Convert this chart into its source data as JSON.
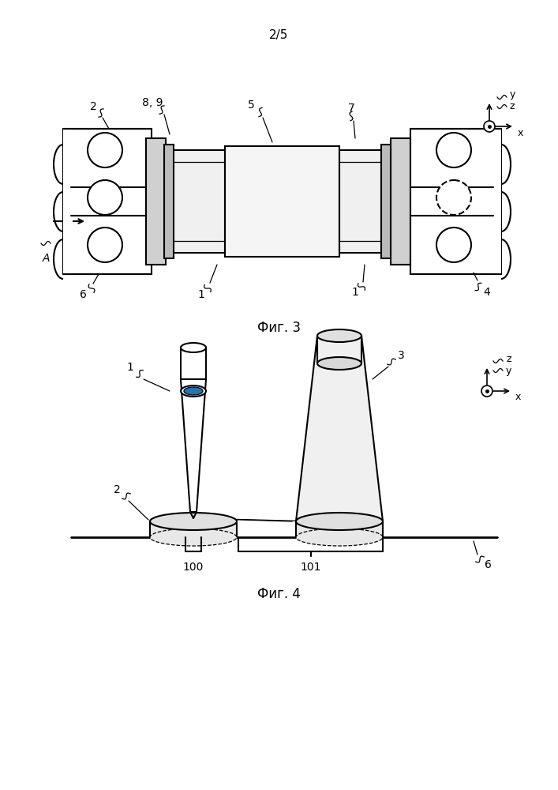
{
  "page_label": "2/5",
  "fig3_label": "Фиг. 3",
  "fig4_label": "Фиг. 4",
  "bg_color": "#ffffff",
  "line_color": "#000000",
  "line_width": 1.5,
  "thin_lw": 0.9,
  "gray_fill": "#d0d0d0",
  "light_gray": "#e8e8e8"
}
